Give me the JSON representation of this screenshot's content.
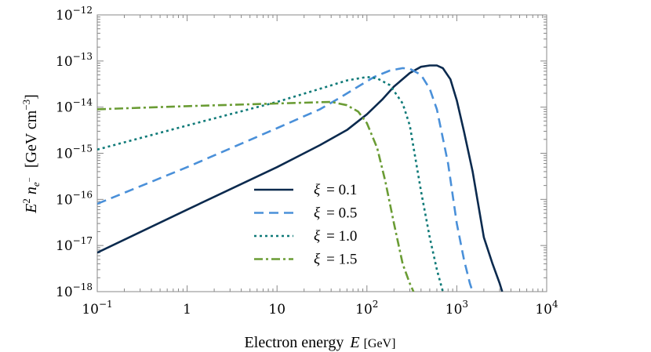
{
  "chart_data": {
    "type": "line",
    "xlabel": "Electron energy",
    "xlabel_symbol": "E",
    "xlabel_unit": "[GeV]",
    "ylabel_symbol": "E",
    "ylabel_symbol_exp": "2",
    "ylabel_symbol2": "n",
    "ylabel_symbol2_sub": "e",
    "ylabel_symbol2_sub_sup": "−",
    "ylabel_unit": "[GeV cm",
    "ylabel_unit_exp": "−3",
    "ylabel_unit_close": "]",
    "x_scale": "log",
    "y_scale": "log",
    "xlim": [
      0.1,
      10000
    ],
    "ylim": [
      1e-18,
      1e-12
    ],
    "x_ticks": [
      {
        "value": 0.1,
        "base": "10",
        "exp": "−1"
      },
      {
        "value": 1,
        "base": "1",
        "exp": ""
      },
      {
        "value": 10,
        "base": "10",
        "exp": ""
      },
      {
        "value": 100,
        "base": "10",
        "exp": "2"
      },
      {
        "value": 1000,
        "base": "10",
        "exp": "3"
      },
      {
        "value": 10000,
        "base": "10",
        "exp": "4"
      }
    ],
    "y_ticks": [
      {
        "value": 1e-18,
        "base": "10",
        "exp": "−18"
      },
      {
        "value": 1e-17,
        "base": "10",
        "exp": "−17"
      },
      {
        "value": 1e-16,
        "base": "10",
        "exp": "−16"
      },
      {
        "value": 1e-15,
        "base": "10",
        "exp": "−15"
      },
      {
        "value": 1e-14,
        "base": "10",
        "exp": "−14"
      },
      {
        "value": 1e-13,
        "base": "10",
        "exp": "−13"
      },
      {
        "value": 1e-12,
        "base": "10",
        "exp": "−12"
      }
    ],
    "grid": false,
    "legend_position": "center",
    "series": [
      {
        "name": "ξ = 0.1",
        "legend_symbol": "ξ",
        "legend_value": "= 0.1",
        "color": "#0b2a4e",
        "dash": "solid",
        "x": [
          0.1,
          1,
          10,
          30,
          60,
          100,
          150,
          200,
          300,
          400,
          500,
          600,
          700,
          850,
          1000,
          1200,
          1500,
          2000,
          2500,
          3000,
          3200
        ],
        "y": [
          7e-18,
          6e-17,
          5e-16,
          1.5e-15,
          3.2e-15,
          7e-15,
          1.5e-14,
          2.8e-14,
          5.5e-14,
          7.5e-14,
          8e-14,
          8e-14,
          7e-14,
          4e-14,
          1.4e-14,
          3e-15,
          4e-16,
          1.5e-17,
          4e-18,
          1.5e-18,
          1e-18
        ]
      },
      {
        "name": "ξ = 0.5",
        "legend_symbol": "ξ",
        "legend_value": "= 0.5",
        "color": "#4a90d9",
        "dash": "12,7",
        "x": [
          0.1,
          1,
          10,
          30,
          50,
          80,
          120,
          180,
          250,
          300,
          400,
          500,
          600,
          800,
          1000,
          1200,
          1400,
          1500
        ],
        "y": [
          8e-17,
          5e-16,
          3.5e-15,
          9e-15,
          1.6e-14,
          2.8e-14,
          4.5e-14,
          6.2e-14,
          7e-14,
          6.8e-14,
          5e-14,
          2.5e-14,
          9e-15,
          6e-16,
          3e-17,
          5e-18,
          1.5e-18,
          1e-18
        ]
      },
      {
        "name": "ξ = 1.0",
        "legend_symbol": "ξ",
        "legend_value": "= 1.0",
        "color": "#0f7a78",
        "dash": "3,4",
        "x": [
          0.1,
          1,
          10,
          30,
          60,
          100,
          130,
          180,
          250,
          300,
          400,
          500,
          600,
          700
        ],
        "y": [
          1.2e-15,
          4e-15,
          1.3e-14,
          2.5e-14,
          3.8e-14,
          4.5e-14,
          4.2e-14,
          3e-14,
          1.2e-14,
          4e-15,
          1.5e-16,
          1.5e-17,
          3e-18,
          1e-18
        ]
      },
      {
        "name": "ξ = 1.5",
        "legend_symbol": "ξ",
        "legend_value": "= 1.5",
        "color": "#6a9c34",
        "dash": "11,4,3,4",
        "x": [
          0.1,
          1,
          10,
          40,
          60,
          80,
          100,
          130,
          160,
          200,
          250,
          300,
          330
        ],
        "y": [
          9e-15,
          1.05e-14,
          1.2e-14,
          1.3e-14,
          1.1e-14,
          8e-15,
          4.5e-15,
          1.3e-15,
          2.5e-16,
          3e-17,
          4e-18,
          1.5e-18,
          1e-18
        ]
      }
    ]
  }
}
